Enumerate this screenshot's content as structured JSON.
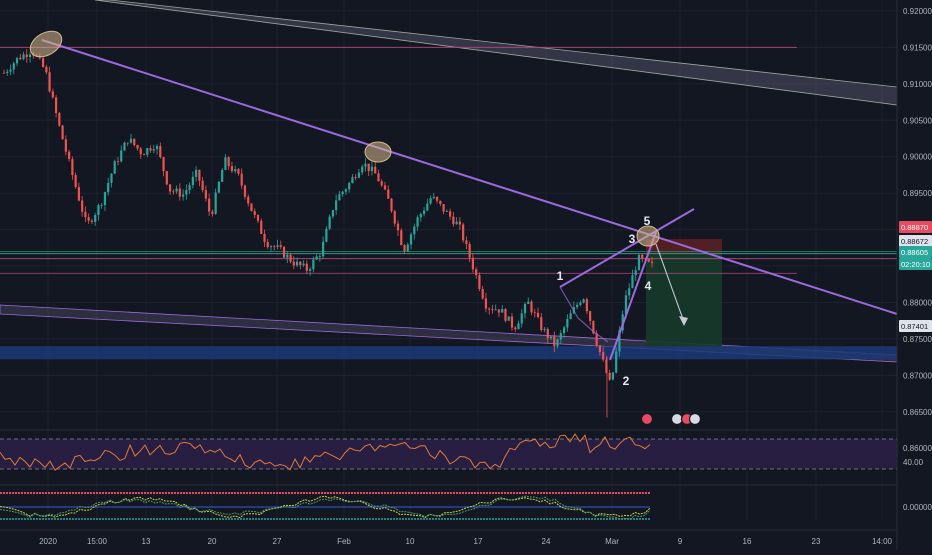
{
  "colors": {
    "background": "#131722",
    "grid": "#1e2230",
    "candle_up": "#26a69a",
    "candle_down": "#ef5350",
    "trendline": "#9c6ade",
    "channel_fill": "#8c84a8",
    "support_zone": "#1c3a78",
    "stop_zone": "#5b1f25",
    "target_zone": "#173a2a",
    "rsi_line": "#e07a3c",
    "rsi_band": "#2a1f45",
    "highlight_ellipse": "#d8b98a",
    "price_badge_red": "#e84a5f",
    "price_badge_teal": "#2aa79b",
    "price_badge_white": "#e0e3eb"
  },
  "price_axis": {
    "ticks": [
      "0.92000",
      "0.91500",
      "0.91000",
      "0.90500",
      "0.90000",
      "0.89500",
      "0.89000",
      "0.88500",
      "0.88000",
      "0.87500",
      "0.87000",
      "0.86500",
      "0.86000"
    ]
  },
  "price_badges": [
    {
      "label": "0.88870",
      "style": "red"
    },
    {
      "label": "0.88672",
      "style": "white"
    },
    {
      "label": "0.88605",
      "style": "teal"
    },
    {
      "label": "02:20:10",
      "style": "teal"
    },
    {
      "label": "0.87401",
      "style": "white"
    }
  ],
  "rsi_axis": {
    "label": "40.00"
  },
  "osc_axis": {
    "label": "0.00000"
  },
  "time_axis": {
    "ticks": [
      "2020",
      "15:00",
      "13",
      "20",
      "27",
      "Feb",
      "10",
      "17",
      "24",
      "Mar",
      "9",
      "16",
      "23",
      "14:00"
    ]
  },
  "wave_labels": [
    "1",
    "2",
    "3",
    "4",
    "5"
  ],
  "chart_data": {
    "type": "candlestick",
    "title": "",
    "ylim": [
      0.8625,
      0.9215
    ],
    "grid": true,
    "series": [
      {
        "values": [
          0.9115,
          0.9135,
          0.9146,
          0.9118,
          0.9042,
          0.8972,
          0.8905,
          0.8935,
          0.8988,
          0.9025,
          0.9005,
          0.9018,
          0.8955,
          0.8948,
          0.8978,
          0.8918,
          0.8995,
          0.8973,
          0.8925,
          0.8883,
          0.8872,
          0.8855,
          0.8845,
          0.887,
          0.894,
          0.8962,
          0.8992,
          0.8975,
          0.8935,
          0.8872,
          0.8915,
          0.8945,
          0.8925,
          0.8905,
          0.885,
          0.8795,
          0.879,
          0.8765,
          0.88,
          0.8765,
          0.874,
          0.878,
          0.881,
          0.8745,
          0.8685,
          0.88,
          0.886,
          0.885
        ]
      }
    ],
    "horizontal_levels": [
      0.915,
      0.887,
      0.8867,
      0.886,
      0.884
    ],
    "support_zone": [
      0.8722,
      0.874
    ],
    "position": {
      "entry": 0.8867,
      "stop": 0.8887,
      "target": 0.874
    }
  }
}
